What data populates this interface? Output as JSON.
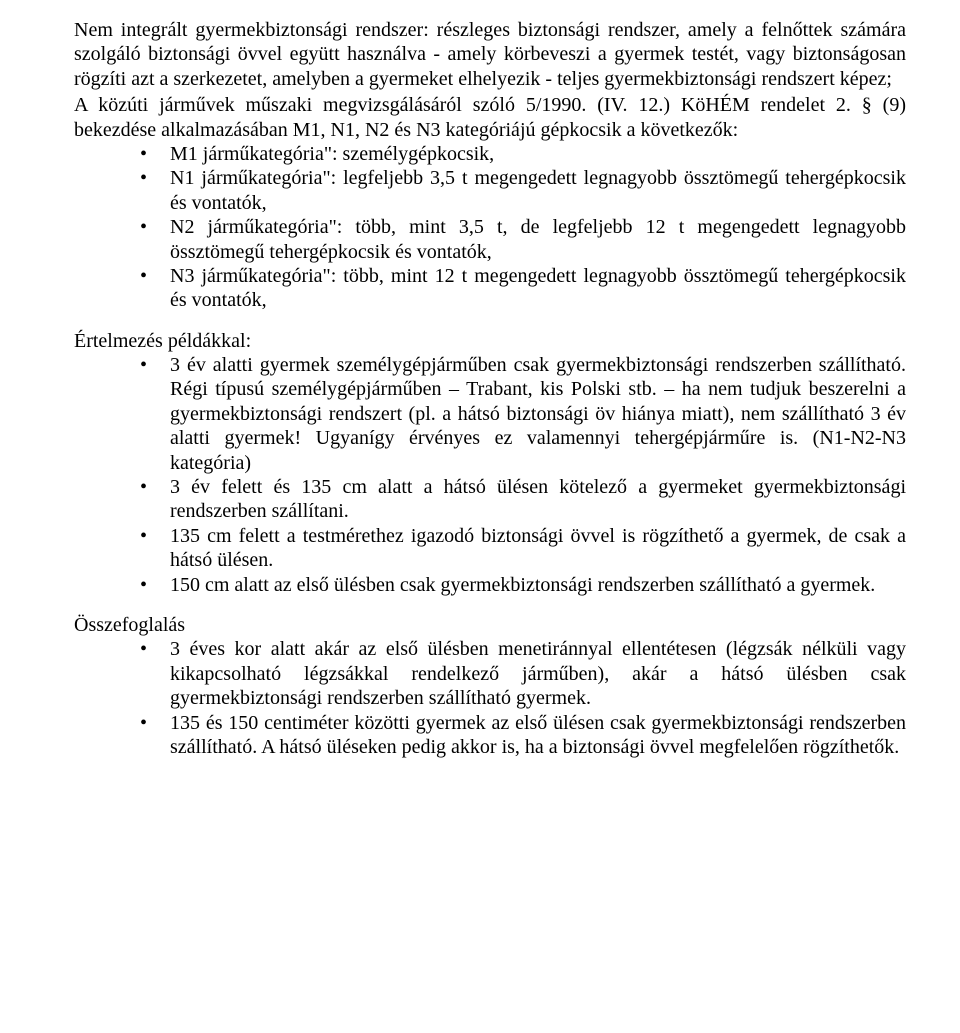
{
  "intro": "Nem integrált gyermekbiztonsági rendszer: részleges biztonsági rendszer, amely a felnőttek számára szolgáló biztonsági övvel együtt használva - amely körbeveszi a gyermek testét, vagy biztonságosan rögzíti azt a szerkezetet, amelyben a gyermeket elhelyezik - teljes gyermekbiztonsági rendszert képez;",
  "law_ref": "A közúti járművek műszaki megvizsgálásáról szóló 5/1990. (IV. 12.) KöHÉM rendelet 2. § (9) bekezdése alkalmazásában M1, N1, N2 és N3 kategóriájú gépkocsik a következők:",
  "cat_list": {
    "i0": "M1 járműkategória\": személygépkocsik,",
    "i1": "N1 járműkategória\": legfeljebb 3,5 t megengedett legnagyobb össztömegű tehergépkocsik és vontatók,",
    "i2": "N2 járműkategória\": több, mint 3,5 t, de legfeljebb 12 t megengedett legnagyobb össztömegű tehergépkocsik és vontatók,",
    "i3": "N3 járműkategória\": több, mint 12 t megengedett legnagyobb össztömegű tehergépkocsik és vontatók,"
  },
  "interp_label": "Értelmezés példákkal:",
  "interp_list": {
    "i0": "3 év alatti gyermek személygépjárműben csak gyermekbiztonsági rendszerben szállítható. Régi típusú személygépjárműben – Trabant, kis Polski stb. – ha nem tudjuk beszerelni a gyermekbiztonsági rendszert (pl. a hátsó biztonsági öv hiánya miatt), nem szállítható 3 év alatti gyermek! Ugyanígy érvényes ez valamennyi tehergépjárműre is. (N1-N2-N3 kategória)",
    "i1": "3 év felett és 135 cm alatt a hátsó ülésen kötelező a gyermeket gyermekbiztonsági rendszerben szállítani.",
    "i2": "135 cm felett a testmérethez igazodó biztonsági övvel is rögzíthető a gyermek, de csak a hátsó ülésen.",
    "i3": "150 cm alatt az első ülésben csak gyermekbiztonsági rendszerben szállítható a gyermek."
  },
  "summary_label": "Összefoglalás",
  "summary_list": {
    "i0": "3 éves kor alatt akár az első ülésben menetiránnyal ellentétesen (légzsák nélküli vagy kikapcsolható légzsákkal rendelkező járműben), akár a hátsó ülésben csak gyermekbiztonsági rendszerben szállítható gyermek.",
    "i1": "135 és 150 centiméter közötti gyermek az első ülésen csak gyermekbiztonsági rendszerben szállítható. A hátsó üléseken pedig akkor is, ha a biztonsági övvel megfelelően rögzíthetők."
  }
}
